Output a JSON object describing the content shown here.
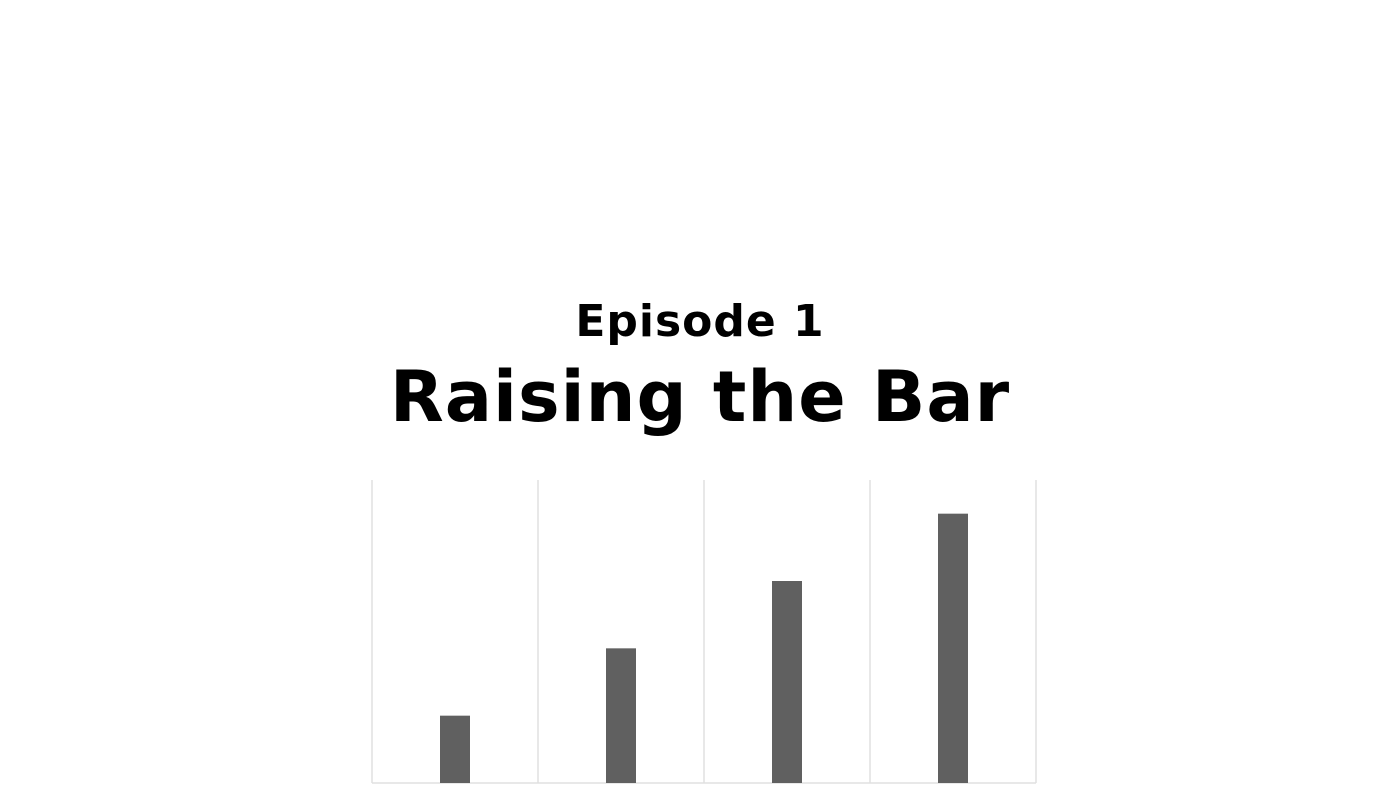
{
  "slide": {
    "episode": "Episode 1",
    "title": "Raising the Bar"
  },
  "colors": {
    "bar": "#606060",
    "grid": "#e0e0e0",
    "background": "#ffffff",
    "text": "#000000"
  },
  "chart_data": {
    "type": "bar",
    "values": [
      1,
      2,
      3,
      4
    ],
    "ylim": [
      0,
      4.5
    ],
    "grid": "vertical",
    "legend": "none"
  }
}
